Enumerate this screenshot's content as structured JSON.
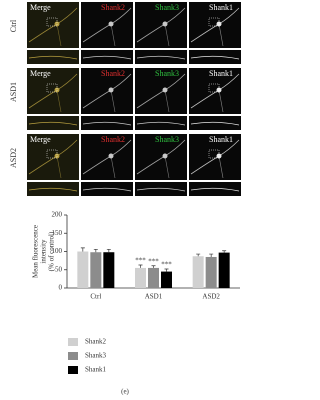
{
  "figure": {
    "columns": [
      "Merge",
      "Shank2",
      "Shank3",
      "Shank1"
    ],
    "rows": [
      "Ctrl",
      "ASD1",
      "ASD2"
    ]
  },
  "chart_data": {
    "type": "bar",
    "y_label": [
      "Mean fluorescence",
      "intensity",
      "(% of control)"
    ],
    "categories": [
      "Ctrl",
      "ASD1",
      "ASD2"
    ],
    "series": [
      {
        "name": "Shank2",
        "color": "#d0d0d0",
        "values": [
          100,
          55,
          87
        ],
        "errors": [
          10,
          8,
          6
        ]
      },
      {
        "name": "Shank3",
        "color": "#8c8c8c",
        "values": [
          98,
          55,
          85
        ],
        "errors": [
          8,
          6,
          8
        ]
      },
      {
        "name": "Shank1",
        "color": "#000000",
        "values": [
          98,
          45,
          97
        ],
        "errors": [
          8,
          7,
          5
        ]
      }
    ],
    "annotations": [
      "***",
      "***",
      "***"
    ],
    "ylim": [
      0,
      200
    ],
    "yticks": [
      0,
      50,
      100,
      150,
      200
    ]
  },
  "panel_label": "(e)"
}
